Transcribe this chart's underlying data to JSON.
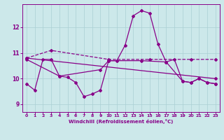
{
  "xlabel": "Windchill (Refroidissement éolien,°C)",
  "xlim": [
    -0.5,
    23.5
  ],
  "ylim": [
    8.7,
    12.9
  ],
  "yticks": [
    9,
    10,
    11,
    12
  ],
  "xticks": [
    0,
    1,
    2,
    3,
    4,
    5,
    6,
    7,
    8,
    9,
    10,
    11,
    12,
    13,
    14,
    15,
    16,
    17,
    18,
    19,
    20,
    21,
    22,
    23
  ],
  "bg_color": "#cce8ea",
  "line_color": "#880088",
  "grid_color": "#aacfd4",
  "lines": [
    {
      "x": [
        0,
        1,
        2,
        3,
        4,
        5,
        6,
        7,
        8,
        9,
        10,
        11,
        12,
        13,
        14,
        15,
        16,
        17,
        18,
        19,
        20,
        21,
        22,
        23
      ],
      "y": [
        9.8,
        9.55,
        10.75,
        10.75,
        10.1,
        10.05,
        9.85,
        9.3,
        9.4,
        9.55,
        10.7,
        10.7,
        11.3,
        12.45,
        12.65,
        12.55,
        11.35,
        10.65,
        10.75,
        9.9,
        9.85,
        10.0,
        9.85,
        9.8
      ],
      "style": "-",
      "marker": "D",
      "markersize": 2.0,
      "linewidth": 0.9
    },
    {
      "x": [
        0,
        3,
        10,
        15,
        20,
        23
      ],
      "y": [
        10.8,
        11.1,
        10.75,
        10.75,
        10.75,
        10.75
      ],
      "style": "--",
      "marker": "D",
      "markersize": 2.0,
      "linewidth": 0.9
    },
    {
      "x": [
        0,
        23
      ],
      "y": [
        10.8,
        10.0
      ],
      "style": "-",
      "marker": "D",
      "markersize": 2.0,
      "linewidth": 0.9
    },
    {
      "x": [
        0,
        4,
        9,
        10,
        14,
        17,
        19,
        20,
        21,
        22,
        23
      ],
      "y": [
        10.75,
        10.1,
        10.35,
        10.7,
        10.7,
        10.65,
        9.9,
        9.85,
        10.0,
        9.85,
        9.8
      ],
      "style": "-",
      "marker": "D",
      "markersize": 2.0,
      "linewidth": 0.9
    }
  ]
}
